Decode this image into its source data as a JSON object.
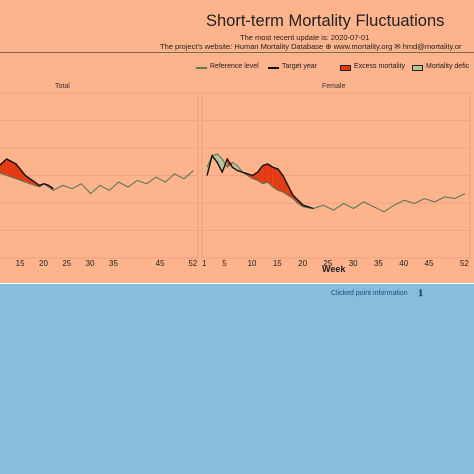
{
  "header": {
    "title": "Short-term Mortality Fluctuations",
    "update_line": "The most recent update is: 2020-07-01",
    "website_line": "The project's website: Human Mortality Database ⊕ www.mortality.org ✉ hmd@mortality.or"
  },
  "legend": {
    "items": [
      {
        "label": "Reference level",
        "color": "#5a7a5a",
        "kind": "line"
      },
      {
        "label": "Target year",
        "color": "#111111",
        "kind": "line"
      },
      {
        "label": "Excess mortality",
        "color": "#e23a12",
        "kind": "fill"
      },
      {
        "label": "Mortality defic",
        "color": "#b8c49a",
        "kind": "fill"
      }
    ]
  },
  "panels": [
    {
      "label": "Total"
    },
    {
      "label": "Female"
    }
  ],
  "x_axis": {
    "label": "Week",
    "left_ticks": [
      "15",
      "20",
      "25",
      "30",
      "35",
      "45",
      "52"
    ],
    "right_ticks": [
      "1",
      "5",
      "10",
      "15",
      "20",
      "25",
      "30",
      "35",
      "40",
      "45",
      "52"
    ]
  },
  "info": {
    "text": "Clicked point information",
    "icon": "info-icon"
  },
  "colors": {
    "top_background": "#fdb38c",
    "bottom_background": "#86bedb",
    "reference": "#5a7a5a",
    "target": "#111111",
    "excess": "#e23a12",
    "deficit": "#b8c49a",
    "grid": "#e8927a"
  },
  "chart_data": [
    {
      "type": "line",
      "title": "Total",
      "xlabel": "",
      "series": [
        {
          "name": "Reference level",
          "x": [
            10,
            12,
            14,
            16,
            18,
            19,
            20,
            21,
            22,
            24,
            26,
            28,
            30,
            32,
            34,
            36,
            38,
            40,
            42,
            44,
            46,
            48,
            50,
            52
          ],
          "values": [
            0.52,
            0.5,
            0.48,
            0.46,
            0.44,
            0.43,
            0.45,
            0.43,
            0.41,
            0.44,
            0.42,
            0.45,
            0.39,
            0.44,
            0.41,
            0.46,
            0.43,
            0.47,
            0.45,
            0.49,
            0.46,
            0.51,
            0.48,
            0.53
          ]
        },
        {
          "name": "Target year",
          "x": [
            10,
            12,
            14,
            16,
            18,
            19,
            20,
            21,
            22
          ],
          "values": [
            0.55,
            0.6,
            0.57,
            0.5,
            0.46,
            0.44,
            0.45,
            0.44,
            0.42
          ]
        }
      ]
    },
    {
      "type": "line",
      "title": "Female",
      "xlabel": "Week",
      "series": [
        {
          "name": "Reference level",
          "x": [
            1,
            2,
            3,
            4,
            5,
            6,
            7,
            8,
            9,
            10,
            11,
            12,
            13,
            14,
            15,
            16,
            17,
            18,
            19,
            20,
            22,
            24,
            26,
            28,
            30,
            32,
            34,
            36,
            38,
            40,
            42,
            44,
            46,
            48,
            50,
            52
          ],
          "values": [
            0.55,
            0.62,
            0.63,
            0.6,
            0.55,
            0.58,
            0.56,
            0.52,
            0.5,
            0.48,
            0.47,
            0.45,
            0.46,
            0.43,
            0.41,
            0.4,
            0.38,
            0.36,
            0.33,
            0.31,
            0.3,
            0.32,
            0.29,
            0.33,
            0.3,
            0.34,
            0.31,
            0.28,
            0.32,
            0.35,
            0.33,
            0.36,
            0.34,
            0.37,
            0.36,
            0.39
          ]
        },
        {
          "name": "Target year",
          "x": [
            1,
            2,
            3,
            4,
            5,
            6,
            7,
            8,
            9,
            10,
            11,
            12,
            13,
            14,
            15,
            16,
            17,
            18,
            19,
            20,
            21,
            22
          ],
          "values": [
            0.5,
            0.62,
            0.58,
            0.52,
            0.6,
            0.55,
            0.53,
            0.52,
            0.51,
            0.5,
            0.52,
            0.56,
            0.57,
            0.55,
            0.54,
            0.5,
            0.44,
            0.38,
            0.35,
            0.32,
            0.31,
            0.3
          ]
        }
      ]
    }
  ]
}
